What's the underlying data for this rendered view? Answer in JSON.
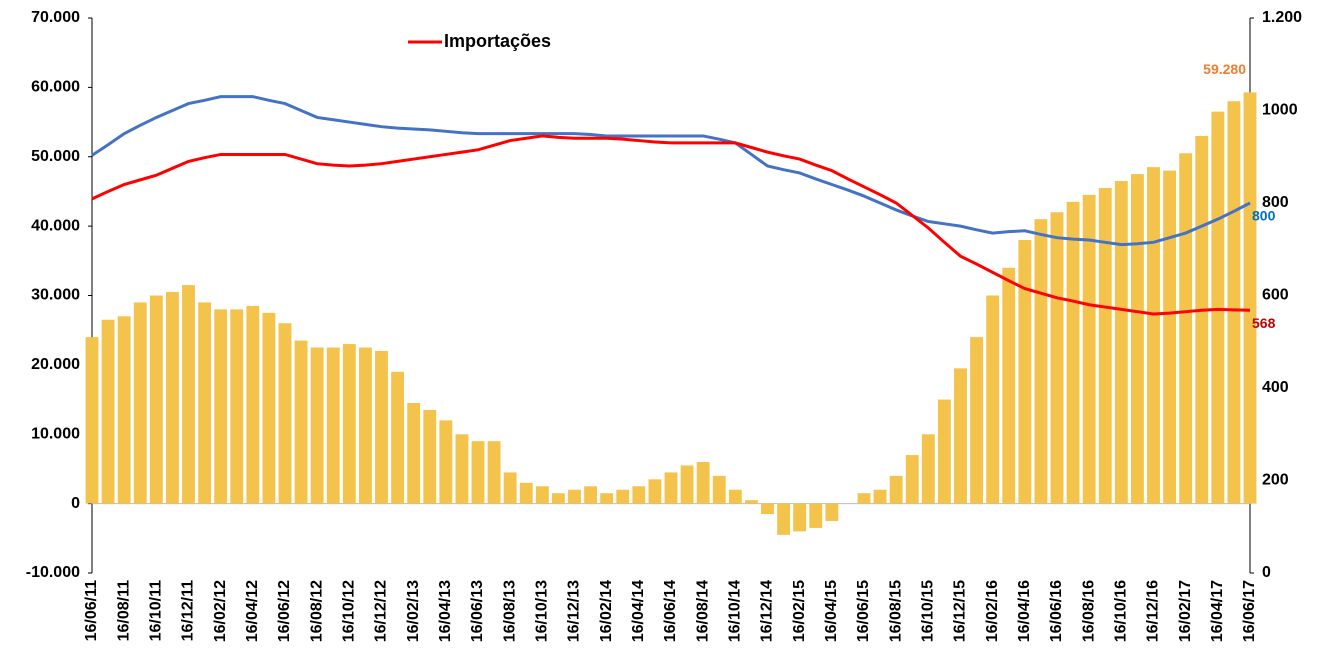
{
  "chart_data": {
    "type": "combo",
    "legend": "top-left",
    "categories": [
      "16/06/11",
      null,
      "16/08/11",
      null,
      "16/10/11",
      null,
      "16/12/11",
      null,
      "16/02/12",
      null,
      "16/04/12",
      null,
      "16/06/12",
      null,
      "16/08/12",
      null,
      "16/10/12",
      null,
      "16/12/12",
      null,
      "16/02/13",
      null,
      "16/04/13",
      null,
      "16/06/13",
      null,
      "16/08/13",
      null,
      "16/10/13",
      null,
      "16/12/13",
      null,
      "16/02/14",
      null,
      "16/04/14",
      null,
      "16/06/14",
      null,
      "16/08/14",
      null,
      "16/10/14",
      null,
      "16/12/14",
      null,
      "16/02/15",
      null,
      "16/04/15",
      null,
      "16/06/15",
      null,
      "16/08/15",
      null,
      "16/10/15",
      null,
      "16/12/15",
      null,
      "16/02/16",
      null,
      "16/04/16",
      null,
      "16/06/16",
      null,
      "16/08/16",
      null,
      "16/10/16",
      null,
      "16/12/16",
      null,
      "16/02/17",
      null,
      "16/04/17",
      null,
      "16/06/17"
    ],
    "series": [
      {
        "type": "bar",
        "color": "#f4c34c",
        "label_color": "#ed7d31",
        "values": [
          24000,
          26500,
          27000,
          29000,
          30000,
          30500,
          31500,
          29000,
          28000,
          28000,
          28500,
          27500,
          26000,
          23500,
          22500,
          22500,
          23000,
          22500,
          22000,
          19000,
          14500,
          13500,
          12000,
          10000,
          9000,
          9000,
          4500,
          3000,
          2500,
          1500,
          2000,
          2500,
          1500,
          2000,
          2500,
          3500,
          4500,
          5500,
          6000,
          4000,
          2000,
          500,
          -1500,
          -4500,
          -4000,
          -3500,
          -2500,
          0,
          1500,
          2000,
          4000,
          7000,
          10000,
          15000,
          19500,
          24000,
          30000,
          34000,
          38000,
          41000,
          42000,
          43500,
          44500,
          45500,
          46500,
          47500,
          48500,
          48000,
          50500,
          53000,
          56500,
          58000,
          59280
        ],
        "value_labels": [
          null,
          null,
          null,
          null,
          null,
          null,
          null,
          null,
          null,
          null,
          null,
          null,
          null,
          null,
          null,
          null,
          null,
          null,
          null,
          null,
          null,
          null,
          null,
          null,
          null,
          null,
          null,
          null,
          null,
          null,
          null,
          null,
          null,
          null,
          null,
          null,
          null,
          null,
          null,
          null,
          null,
          null,
          null,
          null,
          null,
          null,
          null,
          null,
          null,
          null,
          null,
          null,
          null,
          null,
          null,
          null,
          null,
          null,
          null,
          null,
          null,
          null,
          null,
          null,
          null,
          null,
          null,
          null,
          null,
          null,
          null,
          null,
          "59.280"
        ]
      },
      {
        "type": "line",
        "axis": "y2",
        "color": "#4472c4",
        "label_color": "#0070c0",
        "values": [
          903,
          926,
          950,
          968,
          985,
          1000,
          1015,
          1022,
          1030,
          1030,
          1030,
          1022,
          1015,
          1000,
          985,
          980,
          975,
          970,
          965,
          962,
          960,
          958,
          955,
          952,
          950,
          950,
          950,
          950,
          950,
          950,
          950,
          948,
          945,
          945,
          945,
          945,
          945,
          945,
          945,
          938,
          930,
          905,
          880,
          872,
          865,
          852,
          840,
          828,
          815,
          800,
          785,
          772,
          760,
          755,
          750,
          742,
          735,
          738,
          740,
          732,
          725,
          722,
          720,
          715,
          710,
          712,
          715,
          725,
          735,
          750,
          765,
          782,
          800
        ],
        "value_labels": [
          null,
          null,
          null,
          null,
          null,
          null,
          null,
          null,
          null,
          null,
          null,
          null,
          null,
          null,
          null,
          null,
          null,
          null,
          null,
          null,
          null,
          null,
          null,
          null,
          null,
          null,
          null,
          null,
          null,
          null,
          null,
          null,
          null,
          null,
          null,
          null,
          null,
          null,
          null,
          null,
          null,
          null,
          null,
          null,
          null,
          null,
          null,
          null,
          null,
          null,
          null,
          null,
          null,
          null,
          null,
          null,
          null,
          null,
          null,
          null,
          null,
          null,
          null,
          null,
          null,
          null,
          null,
          null,
          null,
          null,
          null,
          null,
          "800"
        ]
      },
      {
        "type": "line",
        "axis": "y2",
        "name": "Importações",
        "color": "#ff0000",
        "label_color": "#c00000",
        "values": [
          809,
          825,
          840,
          850,
          860,
          875,
          890,
          898,
          905,
          905,
          905,
          905,
          905,
          895,
          885,
          882,
          880,
          882,
          885,
          890,
          895,
          900,
          905,
          910,
          915,
          925,
          935,
          940,
          945,
          942,
          940,
          940,
          940,
          938,
          935,
          932,
          930,
          930,
          930,
          930,
          930,
          920,
          910,
          902,
          895,
          882,
          870,
          852,
          835,
          818,
          800,
          773,
          746,
          715,
          685,
          668,
          650,
          632,
          615,
          605,
          595,
          588,
          580,
          575,
          570,
          565,
          560,
          562,
          565,
          568,
          570,
          569,
          568
        ],
        "value_labels": [
          null,
          null,
          null,
          null,
          null,
          null,
          null,
          null,
          null,
          null,
          null,
          null,
          null,
          null,
          null,
          null,
          null,
          null,
          null,
          null,
          null,
          null,
          null,
          null,
          null,
          null,
          null,
          null,
          null,
          null,
          null,
          null,
          null,
          null,
          null,
          null,
          null,
          null,
          null,
          null,
          null,
          null,
          null,
          null,
          null,
          null,
          null,
          null,
          null,
          null,
          null,
          null,
          null,
          null,
          null,
          null,
          null,
          null,
          null,
          null,
          null,
          null,
          null,
          null,
          null,
          null,
          null,
          null,
          null,
          null,
          null,
          null,
          "568"
        ]
      }
    ],
    "ylim": [
      -10000,
      70000
    ],
    "yticks": [
      {
        "value": -10000,
        "label": "-10.000"
      },
      0,
      {
        "value": 10000,
        "label": "10.000"
      },
      {
        "value": 20000,
        "label": "20.000"
      },
      {
        "value": 30000,
        "label": "30.000"
      },
      {
        "value": 40000,
        "label": "40.000"
      },
      {
        "value": 50000,
        "label": "50.000"
      },
      {
        "value": 60000,
        "label": "60.000"
      },
      {
        "value": 70000,
        "label": "70.000"
      }
    ],
    "y2lim": [
      0,
      1200
    ],
    "y2ticks": [
      0,
      200,
      400,
      600,
      800,
      1000,
      {
        "value": 1200,
        "label": "1.200"
      }
    ]
  }
}
